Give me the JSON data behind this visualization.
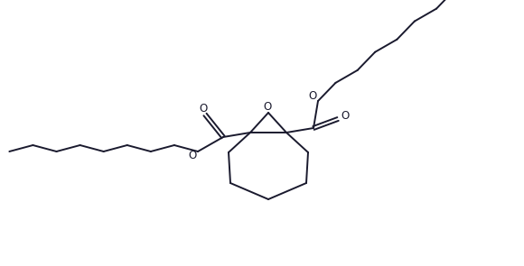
{
  "bg_color": "#ffffff",
  "line_color": "#1a1a2e",
  "line_width": 1.4,
  "figsize": [
    5.8,
    2.95
  ],
  "dpi": 100,
  "xlim": [
    0,
    5.8
  ],
  "ylim": [
    0,
    2.95
  ]
}
